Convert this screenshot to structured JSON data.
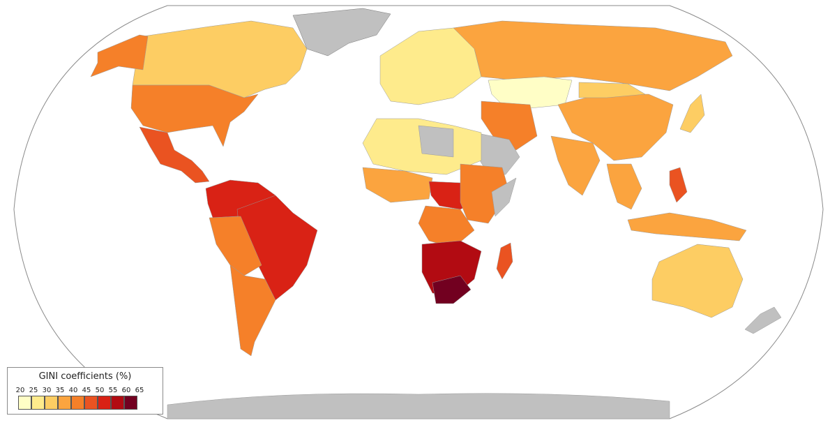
{
  "legend": {
    "title": "GINI coefficients (%)",
    "ticks": [
      "20",
      "25",
      "30",
      "35",
      "40",
      "45",
      "50",
      "55",
      "60",
      "65"
    ],
    "bins": [
      {
        "range": "20-25",
        "color": "#fffec6"
      },
      {
        "range": "25-30",
        "color": "#feeb8c"
      },
      {
        "range": "30-35",
        "color": "#fdcd63"
      },
      {
        "range": "35-40",
        "color": "#fba43f"
      },
      {
        "range": "40-45",
        "color": "#f58029"
      },
      {
        "range": "45-50",
        "color": "#ea5321"
      },
      {
        "range": "50-55",
        "color": "#d92215"
      },
      {
        "range": "55-60",
        "color": "#b20b12"
      },
      {
        "range": "60-65",
        "color": "#720020"
      }
    ]
  },
  "colors": {
    "no_data": "#c0c0c0",
    "ocean": "#ffffff",
    "frame": "#8a8a8a"
  }
}
